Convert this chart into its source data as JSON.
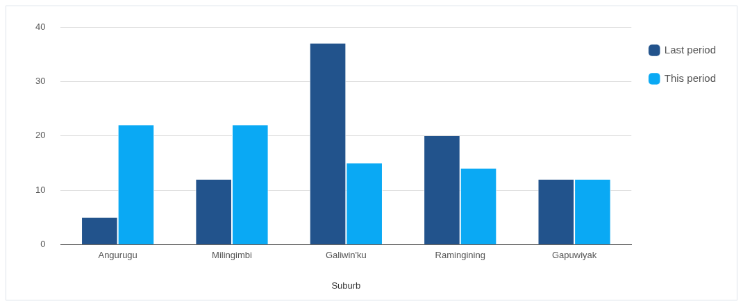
{
  "chart_data": {
    "type": "bar",
    "xlabel": "Suburb",
    "categories": [
      "Angurugu",
      "Milingimbi",
      "Galiwin'ku",
      "Ramingining",
      "Gapuwiyak"
    ],
    "series": [
      {
        "name": "Last period",
        "color": "#22538c",
        "values": [
          5,
          12,
          37,
          20,
          12
        ]
      },
      {
        "name": "This period",
        "color": "#0aa9f4",
        "values": [
          22,
          22,
          15,
          14,
          12
        ]
      }
    ],
    "ylim": [
      0,
      40
    ],
    "yticks": [
      0,
      10,
      20,
      30,
      40
    ],
    "grid": "y",
    "legend": "top right"
  }
}
